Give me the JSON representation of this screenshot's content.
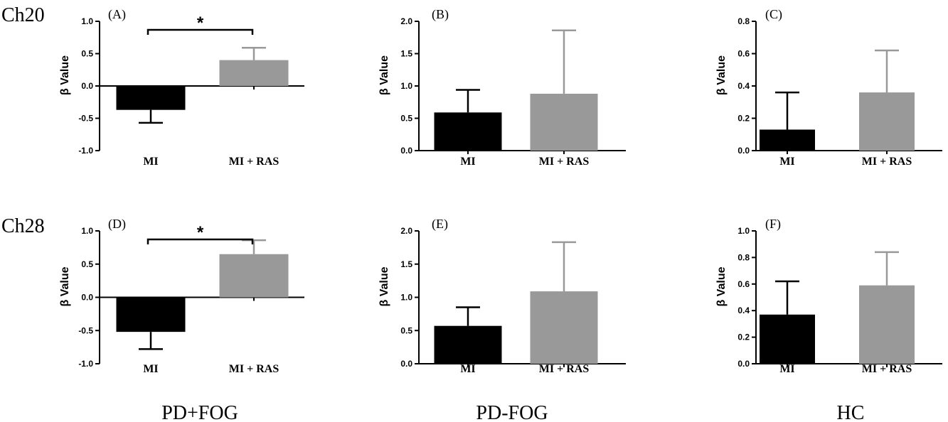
{
  "row_labels": [
    "Ch20",
    "Ch28"
  ],
  "group_labels": [
    "PD+FOG",
    "PD-FOG",
    "HC"
  ],
  "chart_data": [
    {
      "type": "bar",
      "panel": "(A)",
      "row": 0,
      "col": 0,
      "categories": [
        "MI",
        "MI + RAS"
      ],
      "values": [
        -0.37,
        0.4
      ],
      "errors": [
        0.2,
        0.19
      ],
      "ylabel": "β Value",
      "ylim": [
        -1.0,
        1.0
      ],
      "yticks": [
        "-1.0",
        "-0.5",
        "0.0",
        "0.5",
        "1.0"
      ],
      "significance": "*",
      "bar_colors": [
        "#000000",
        "#999999"
      ]
    },
    {
      "type": "bar",
      "panel": "(B)",
      "row": 0,
      "col": 1,
      "categories": [
        "MI",
        "MI + RAS"
      ],
      "values": [
        0.59,
        0.88
      ],
      "errors": [
        0.35,
        0.98
      ],
      "ylabel": "β Value",
      "ylim": [
        0.0,
        2.0
      ],
      "yticks": [
        "0.0",
        "0.5",
        "1.0",
        "1.5",
        "2.0"
      ],
      "significance": "",
      "bar_colors": [
        "#000000",
        "#999999"
      ]
    },
    {
      "type": "bar",
      "panel": "(C)",
      "row": 0,
      "col": 2,
      "categories": [
        "MI",
        "MI + RAS"
      ],
      "values": [
        0.13,
        0.36
      ],
      "errors": [
        0.23,
        0.26
      ],
      "ylabel": "β Value",
      "ylim": [
        0.0,
        0.8
      ],
      "yticks": [
        "0.0",
        "0.2",
        "0.4",
        "0.6",
        "0.8"
      ],
      "significance": "",
      "bar_colors": [
        "#000000",
        "#999999"
      ]
    },
    {
      "type": "bar",
      "panel": "(D)",
      "row": 1,
      "col": 0,
      "categories": [
        "MI",
        "MI + RAS"
      ],
      "values": [
        -0.52,
        0.65
      ],
      "errors": [
        0.26,
        0.21
      ],
      "ylabel": "β Value",
      "ylim": [
        -1.0,
        1.0
      ],
      "yticks": [
        "-1.0",
        "-0.5",
        "0.0",
        "0.5",
        "1.0"
      ],
      "significance": "*",
      "bar_colors": [
        "#000000",
        "#999999"
      ]
    },
    {
      "type": "bar",
      "panel": "(E)",
      "row": 1,
      "col": 1,
      "categories": [
        "MI",
        "MI + RAS"
      ],
      "values": [
        0.57,
        1.09
      ],
      "errors": [
        0.28,
        0.74
      ],
      "ylabel": "β Value",
      "ylim": [
        0.0,
        2.0
      ],
      "yticks": [
        "0.0",
        "0.5",
        "1.0",
        "1.5",
        "2.0"
      ],
      "significance": "",
      "bar_colors": [
        "#000000",
        "#999999"
      ]
    },
    {
      "type": "bar",
      "panel": "(F)",
      "row": 1,
      "col": 2,
      "categories": [
        "MI",
        "MI + RAS"
      ],
      "values": [
        0.37,
        0.59
      ],
      "errors": [
        0.25,
        0.25
      ],
      "ylabel": "β Value",
      "ylim": [
        0.0,
        1.0
      ],
      "yticks": [
        "0.0",
        "0.2",
        "0.4",
        "0.6",
        "0.8",
        "1.0"
      ],
      "significance": "",
      "bar_colors": [
        "#000000",
        "#999999"
      ]
    }
  ]
}
